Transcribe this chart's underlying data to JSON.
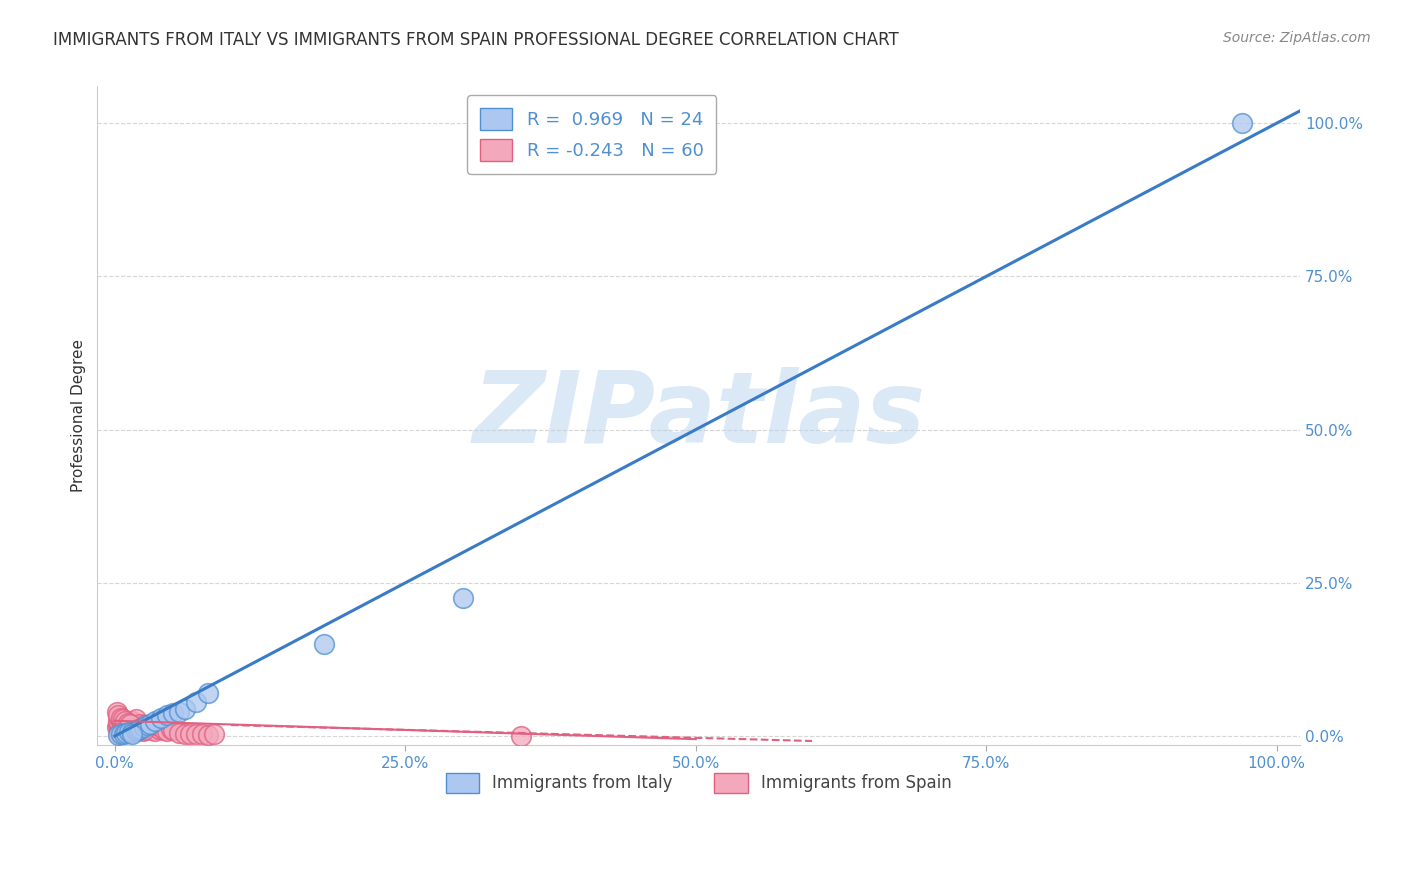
{
  "title": "IMMIGRANTS FROM ITALY VS IMMIGRANTS FROM SPAIN PROFESSIONAL DEGREE CORRELATION CHART",
  "source": "Source: ZipAtlas.com",
  "ylabel": "Professional Degree",
  "watermark": "ZIPatlas",
  "legend_italy": "Immigrants from Italy",
  "legend_spain": "Immigrants from Spain",
  "italy_R": 0.969,
  "italy_N": 24,
  "spain_R": -0.243,
  "spain_N": 60,
  "italy_color": "#adc8f0",
  "italy_edge_color": "#5090d0",
  "spain_color": "#f4a8bc",
  "spain_edge_color": "#e06080",
  "italy_line_color": "#3a7bc8",
  "spain_line_color": "#e06080",
  "italy_scatter_x": [
    0.3,
    0.5,
    0.8,
    1.0,
    1.2,
    1.5,
    1.8,
    2.0,
    2.2,
    2.5,
    2.8,
    3.0,
    3.5,
    4.0,
    4.5,
    5.0,
    5.5,
    6.0,
    7.0,
    8.0,
    18.0,
    30.0,
    97.0,
    1.5
  ],
  "italy_scatter_y": [
    0.2,
    0.3,
    0.4,
    0.5,
    0.6,
    0.7,
    0.8,
    1.0,
    1.2,
    1.5,
    1.8,
    2.0,
    2.5,
    3.0,
    3.5,
    3.8,
    4.0,
    4.5,
    5.5,
    7.0,
    15.0,
    22.5,
    100.0,
    0.3
  ],
  "spain_scatter_x": [
    0.2,
    0.3,
    0.4,
    0.5,
    0.6,
    0.7,
    0.8,
    0.9,
    1.0,
    1.1,
    1.2,
    1.3,
    1.4,
    1.5,
    1.6,
    1.7,
    1.8,
    1.9,
    2.0,
    2.2,
    2.4,
    2.6,
    2.8,
    3.0,
    3.2,
    3.5,
    3.8,
    4.0,
    4.2,
    4.5,
    4.8,
    5.0,
    5.5,
    6.0,
    6.5,
    7.0,
    7.5,
    8.0,
    8.5,
    0.3,
    0.4,
    0.6,
    0.8,
    1.2,
    1.5,
    1.8,
    2.2,
    2.5,
    2.8,
    0.2,
    0.3,
    0.5,
    0.7,
    0.9,
    1.1,
    1.3,
    35.0,
    2.0,
    2.5,
    0.4
  ],
  "spain_scatter_y": [
    1.5,
    1.8,
    2.0,
    2.5,
    1.2,
    1.0,
    0.8,
    1.5,
    2.0,
    1.2,
    1.8,
    2.2,
    1.5,
    1.0,
    0.8,
    1.2,
    1.8,
    2.0,
    1.5,
    1.0,
    0.8,
    1.2,
    1.5,
    1.8,
    1.0,
    0.8,
    1.2,
    1.5,
    1.0,
    0.8,
    1.2,
    1.0,
    0.5,
    0.4,
    0.3,
    0.4,
    0.3,
    0.2,
    0.3,
    2.5,
    3.0,
    2.2,
    1.8,
    2.0,
    2.5,
    2.8,
    2.0,
    1.8,
    1.5,
    4.0,
    3.5,
    3.0,
    2.8,
    2.5,
    2.2,
    2.0,
    0.0,
    1.2,
    1.0,
    0.5
  ],
  "xlim": [
    -1.5,
    102.0
  ],
  "ylim": [
    -1.5,
    106.0
  ],
  "xticks": [
    0,
    25,
    50,
    75,
    100
  ],
  "xticklabels": [
    "0.0%",
    "25.0%",
    "50.0%",
    "75.0%",
    "100.0%"
  ],
  "yticks": [
    0,
    25,
    50,
    75,
    100
  ],
  "yticklabels": [
    "0.0%",
    "25.0%",
    "50.0%",
    "75.0%",
    "100.0%"
  ],
  "background_color": "#ffffff",
  "grid_color": "#cccccc",
  "tick_color": "#5090d0",
  "title_color": "#333333",
  "source_color": "#888888",
  "ylabel_color": "#333333"
}
